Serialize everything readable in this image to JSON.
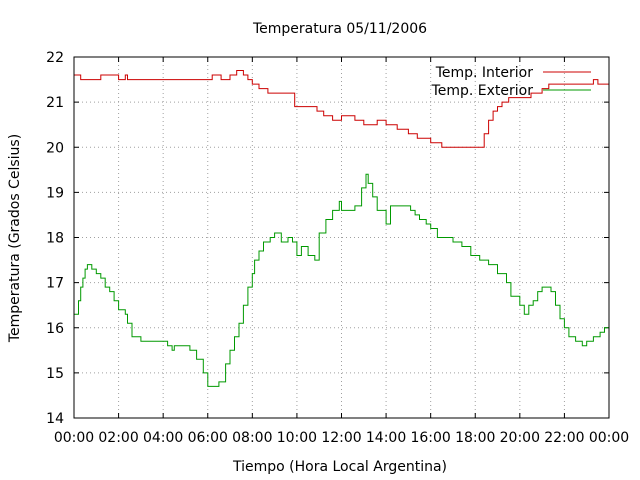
{
  "chart_data": {
    "type": "line",
    "title": "Temperatura 05/11/2006",
    "xlabel": "Tiempo (Hora Local Argentina)",
    "ylabel": "Temperatura (Grados Celsius)",
    "xlim": [
      0,
      24
    ],
    "ylim": [
      14,
      22
    ],
    "x_ticks": [
      "00:00",
      "02:00",
      "04:00",
      "06:00",
      "08:00",
      "10:00",
      "12:00",
      "14:00",
      "16:00",
      "18:00",
      "20:00",
      "22:00",
      "00:00"
    ],
    "y_ticks": [
      "14",
      "15",
      "16",
      "17",
      "18",
      "19",
      "20",
      "21",
      "22"
    ],
    "grid": true,
    "legend_position": "top-right",
    "series": [
      {
        "name": "Temp. Interior",
        "color": "#cc0000",
        "step": true,
        "x": [
          0,
          0.3,
          1.2,
          1.6,
          2.0,
          2.3,
          2.4,
          2.5,
          3.0,
          4.0,
          5.0,
          6.0,
          6.2,
          6.6,
          7.0,
          7.3,
          7.6,
          7.8,
          8.0,
          8.3,
          8.7,
          9.0,
          9.9,
          10.9,
          11.2,
          11.6,
          12.0,
          12.6,
          13.0,
          13.3,
          13.6,
          14.0,
          14.5,
          15.0,
          15.4,
          16.0,
          16.5,
          17.0,
          17.4,
          18.0,
          18.4,
          18.6,
          18.8,
          19.0,
          19.2,
          19.5,
          20.0,
          20.5,
          20.8,
          21.0,
          21.3,
          21.5,
          21.8,
          22.5,
          23.0,
          23.3,
          23.5,
          23.8,
          24.0
        ],
        "values": [
          21.6,
          21.5,
          21.6,
          21.6,
          21.5,
          21.6,
          21.5,
          21.5,
          21.5,
          21.5,
          21.5,
          21.5,
          21.6,
          21.5,
          21.6,
          21.7,
          21.6,
          21.5,
          21.4,
          21.3,
          21.2,
          21.2,
          20.9,
          20.8,
          20.7,
          20.6,
          20.7,
          20.6,
          20.5,
          20.5,
          20.6,
          20.5,
          20.4,
          20.3,
          20.2,
          20.1,
          20.0,
          20.0,
          20.0,
          20.0,
          20.3,
          20.6,
          20.8,
          20.9,
          21.0,
          21.1,
          21.1,
          21.2,
          21.2,
          21.3,
          21.4,
          21.4,
          21.4,
          21.4,
          21.4,
          21.5,
          21.4,
          21.4,
          21.4
        ]
      },
      {
        "name": "Temp. Exterior",
        "color": "#009900",
        "step": true,
        "x": [
          0,
          0.2,
          0.3,
          0.4,
          0.5,
          0.6,
          0.8,
          1.0,
          1.2,
          1.4,
          1.6,
          1.8,
          2.0,
          2.3,
          2.4,
          2.6,
          3.0,
          3.5,
          4.0,
          4.2,
          4.4,
          4.5,
          4.8,
          5.2,
          5.5,
          5.8,
          6.0,
          6.3,
          6.5,
          6.8,
          7.0,
          7.2,
          7.4,
          7.6,
          7.8,
          8.0,
          8.1,
          8.3,
          8.5,
          8.8,
          9.0,
          9.3,
          9.6,
          9.8,
          10.0,
          10.2,
          10.5,
          10.8,
          11.0,
          11.3,
          11.6,
          11.9,
          12.0,
          12.2,
          12.4,
          12.6,
          12.9,
          13.1,
          13.2,
          13.4,
          13.6,
          14.0,
          14.2,
          14.5,
          14.9,
          15.1,
          15.3,
          15.5,
          15.8,
          16.0,
          16.3,
          16.6,
          17.0,
          17.4,
          17.8,
          18.2,
          18.6,
          19.0,
          19.4,
          19.6,
          20.0,
          20.2,
          20.4,
          20.6,
          20.8,
          21.0,
          21.4,
          21.6,
          21.8,
          22.0,
          22.2,
          22.5,
          22.8,
          23.0,
          23.3,
          23.6,
          23.8,
          24.0
        ],
        "values": [
          16.3,
          16.6,
          16.9,
          17.1,
          17.3,
          17.4,
          17.3,
          17.2,
          17.1,
          16.9,
          16.8,
          16.6,
          16.4,
          16.3,
          16.1,
          15.8,
          15.7,
          15.7,
          15.7,
          15.6,
          15.5,
          15.6,
          15.6,
          15.5,
          15.3,
          15.0,
          14.7,
          14.7,
          14.8,
          15.2,
          15.5,
          15.8,
          16.1,
          16.5,
          16.9,
          17.2,
          17.5,
          17.7,
          17.9,
          18.0,
          18.1,
          17.9,
          18.0,
          17.9,
          17.6,
          17.8,
          17.6,
          17.5,
          18.1,
          18.4,
          18.6,
          18.8,
          18.6,
          18.6,
          18.6,
          18.7,
          19.1,
          19.4,
          19.2,
          18.9,
          18.6,
          18.3,
          18.7,
          18.7,
          18.7,
          18.6,
          18.5,
          18.4,
          18.3,
          18.2,
          18.0,
          18.0,
          17.9,
          17.8,
          17.6,
          17.5,
          17.4,
          17.2,
          17.0,
          16.7,
          16.5,
          16.3,
          16.5,
          16.6,
          16.8,
          16.9,
          16.8,
          16.5,
          16.2,
          16.0,
          15.8,
          15.7,
          15.6,
          15.7,
          15.8,
          15.9,
          16.0,
          16.0
        ]
      }
    ]
  }
}
